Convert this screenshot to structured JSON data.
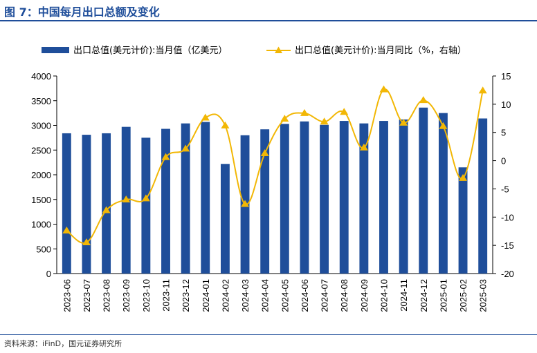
{
  "header": {
    "title": "图 7：中国每月出口总额及变化"
  },
  "footer": {
    "source": "资料来源：iFinD，国元证券研究所"
  },
  "colors": {
    "bar": "#1f4e9a",
    "line": "#f2b705",
    "title": "#1f4e9a"
  },
  "chart_data": {
    "type": "bar",
    "categories": [
      "2023-06",
      "2023-07",
      "2023-08",
      "2023-09",
      "2023-10",
      "2023-11",
      "2023-12",
      "2024-01",
      "2024-02",
      "2024-03",
      "2024-04",
      "2024-05",
      "2024-06",
      "2024-07",
      "2024-08",
      "2024-09",
      "2024-10",
      "2024-11",
      "2024-12",
      "2025-01",
      "2025-02",
      "2025-03"
    ],
    "series": [
      {
        "name": "出口总值(美元计价):当月值（亿美元）",
        "type": "bar",
        "axis": "left",
        "values": [
          2840,
          2810,
          2840,
          2970,
          2750,
          2930,
          3040,
          3070,
          2220,
          2800,
          2920,
          3030,
          3080,
          3010,
          3090,
          3040,
          3090,
          3120,
          3360,
          3250,
          2150,
          3140
        ]
      },
      {
        "name": "出口总值(美元计价):当月同比（%，右轴）",
        "type": "line",
        "axis": "right",
        "values": [
          -12.4,
          -14.5,
          -8.8,
          -6.9,
          -6.7,
          0.6,
          2.1,
          7.6,
          6.2,
          -7.7,
          1.3,
          7.4,
          8.4,
          6.9,
          8.6,
          2.3,
          12.6,
          6.7,
          10.7,
          6.1,
          -3.1,
          12.4
        ]
      }
    ],
    "left_axis": {
      "ylim": [
        0,
        4000
      ],
      "ticks": [
        "0",
        "500",
        "1000",
        "1500",
        "2000",
        "2500",
        "3000",
        "3500",
        "4000"
      ]
    },
    "right_axis": {
      "ylim": [
        -20,
        15
      ],
      "ticks": [
        "-20",
        "-15",
        "-10",
        "-5",
        "0",
        "5",
        "10",
        "15"
      ]
    },
    "grid": false,
    "legend": "top"
  }
}
